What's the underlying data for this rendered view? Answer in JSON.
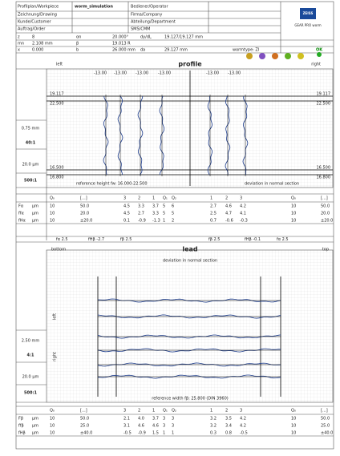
{
  "header": {
    "workpiece_label": "Profilplan/Workpiece",
    "workpiece": "worm_simulation",
    "operator_label": "Bediener/Operator",
    "drawing_label": "Zeichnung/Drawing",
    "company_label": "Firma/Company",
    "customer_label": "Kunde/Customer",
    "department_label": "Abteilung/Department",
    "order_label": "Auftrag/Order",
    "cmm_label": "SMS/CMM",
    "logo": "ZEISS",
    "product": "GEAR PRO worm"
  },
  "params": [
    [
      "z",
      "8",
      "αn",
      "20.000°",
      "dy/dL",
      "19.127/19.127 mm"
    ],
    [
      "mn",
      "2.108 mm",
      "β",
      "19.013 R"
    ],
    [
      "x",
      "0.000",
      "b",
      "26.000 mm",
      "da",
      "29.127 mm",
      "wormtype: ZI"
    ]
  ],
  "status": "OK",
  "profile": {
    "title": "profile",
    "left": "left",
    "right": "right",
    "top_labels": [
      "-13.00",
      "-13.00",
      "-13.00",
      "-13.00",
      "-13.00",
      "-13.00"
    ],
    "limits": [
      "19.117",
      "22.500",
      "16.500",
      "16.800"
    ],
    "reference": "reference height fw: 16.000-22.500",
    "deviation": "deviation in normal section",
    "scale": [
      "0.75 mm",
      "40:1",
      "20.0 μm",
      "500:1"
    ]
  },
  "profile_table": {
    "header": [
      "Q₀",
      "[...]",
      "3",
      "2",
      "1",
      "Q₁",
      "Q₂",
      "1",
      "2",
      "3",
      "Q₀",
      "[...]"
    ],
    "rows": [
      {
        "label": "Fα",
        "unit": "μm",
        "cells": [
          "10",
          "50.0",
          "4.5",
          "3.3",
          "3.7",
          "5",
          "6",
          "2.7",
          "4.6",
          "4.2",
          "10",
          "50.0"
        ]
      },
      {
        "label": "ffα",
        "unit": "μm",
        "cells": [
          "10",
          "20.0",
          "4.5",
          "2.7",
          "3.3",
          "5",
          "5",
          "2.5",
          "4.7",
          "4.1",
          "10",
          "20.0"
        ]
      },
      {
        "label": "fHα",
        "unit": "μm",
        "cells": [
          "10",
          "±20.0",
          "0.1",
          "-0.9",
          "-1.3",
          "1",
          "2",
          "0.7",
          "-0.6",
          "-0.3",
          "10",
          "±20.0"
        ]
      }
    ]
  },
  "lead": {
    "title": "lead",
    "bottom": "bottom",
    "top": "top",
    "info": [
      "fα 2.5",
      "fHβ -2.7",
      "fβ 2.5",
      "fβ 2.5",
      "fHβ -0.1",
      "fα 2.5"
    ],
    "deviation": "deviation in normal section",
    "left": "left",
    "right": "right",
    "reference": "reference width fβ: 25.800   (DIN 3960)",
    "scale": [
      "2.50 mm",
      "4:1",
      "20.0 μm",
      "500:1"
    ]
  },
  "lead_table": {
    "header": [
      "Q₀",
      "[...]",
      "3",
      "2",
      "1",
      "Q₁",
      "Q₂",
      "1",
      "2",
      "3",
      "Q₀",
      "[...]"
    ],
    "rows": [
      {
        "label": "Fβ",
        "unit": "μm",
        "cells": [
          "10",
          "50.0",
          "2.1",
          "4.0",
          "3.7",
          "3",
          "3",
          "3.2",
          "3.5",
          "4.2",
          "10",
          "50.0"
        ]
      },
      {
        "label": "ffβ",
        "unit": "μm",
        "cells": [
          "10",
          "25.0",
          "3.1",
          "4.6",
          "4.6",
          "3",
          "3",
          "3.2",
          "3.4",
          "4.2",
          "10",
          "25.0"
        ]
      },
      {
        "label": "fHβ",
        "unit": "μm",
        "cells": [
          "10",
          "±40.0",
          "-0.5",
          "-0.9",
          "1.5",
          "1",
          "1",
          "0.3",
          "0.8",
          "-0.5",
          "10",
          "±40.0"
        ]
      }
    ]
  }
}
